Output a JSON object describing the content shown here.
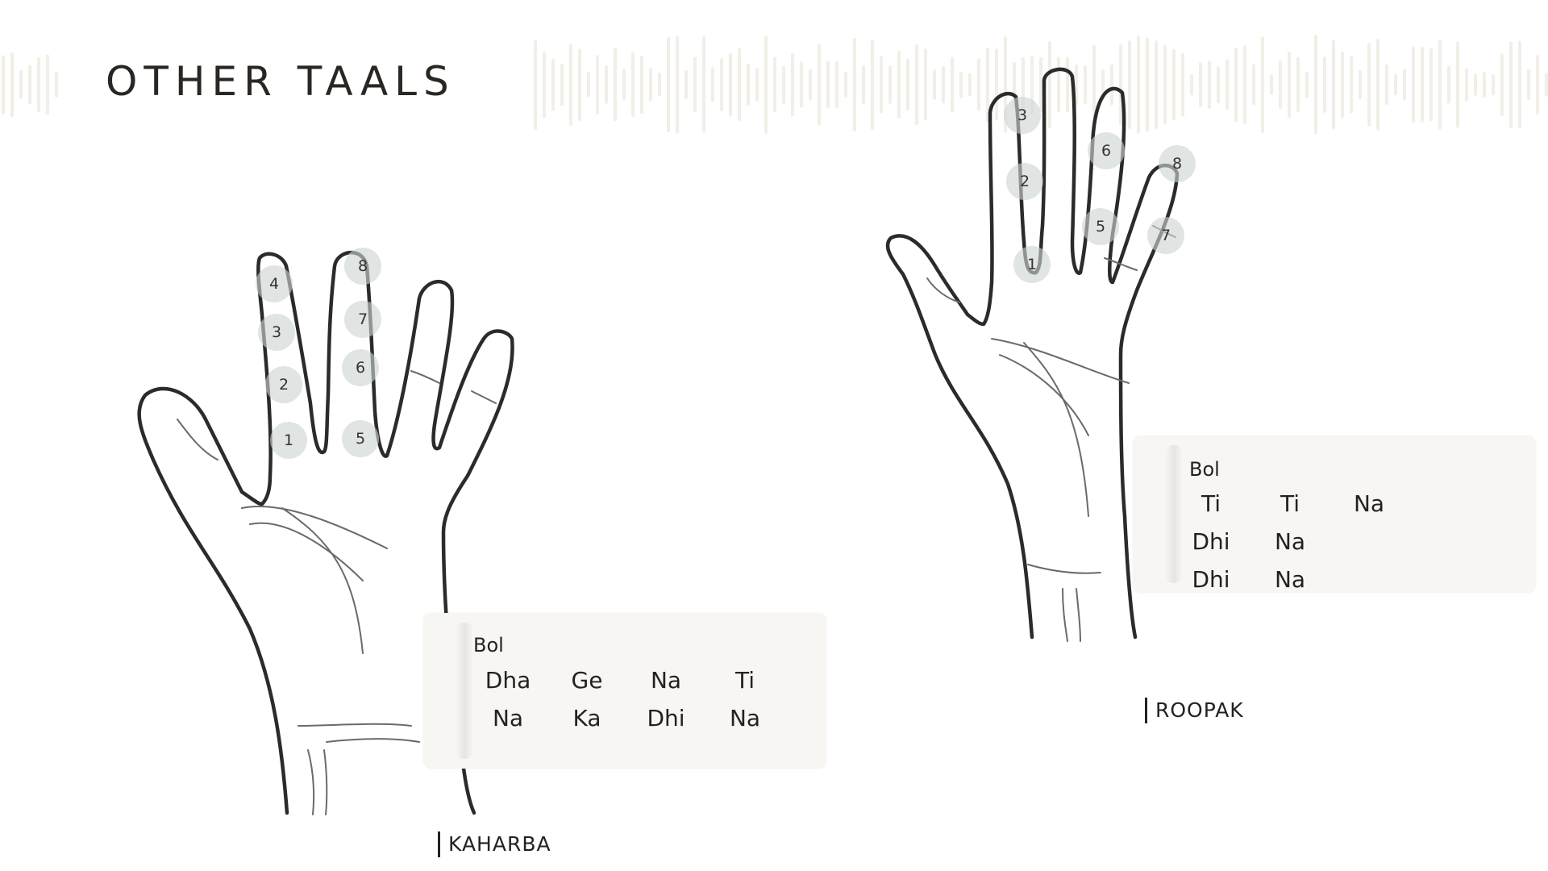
{
  "page": {
    "title": "OTHER TAALS"
  },
  "colors": {
    "text": "#2a2622",
    "card": "#f8f6f2",
    "dot": "#cdd4d2",
    "wave": "#f1efe6"
  },
  "taals": [
    {
      "name": "KAHARBA",
      "bol_label": "Bol",
      "bols": [
        "Dha",
        "Ge",
        "Na",
        "Ti",
        "Na",
        "Ka",
        "Dhi",
        "Na"
      ],
      "finger_counts": [
        "1",
        "2",
        "3",
        "4",
        "5",
        "6",
        "7",
        "8"
      ]
    },
    {
      "name": "ROOPAK",
      "bol_label": "Bol",
      "bols": [
        "Ti",
        "Ti",
        "Na",
        "Dhi",
        "Na",
        "",
        "Dhi",
        "Na",
        ""
      ],
      "finger_counts": [
        "1",
        "2",
        "3",
        "5",
        "6",
        "7",
        "8"
      ]
    }
  ]
}
